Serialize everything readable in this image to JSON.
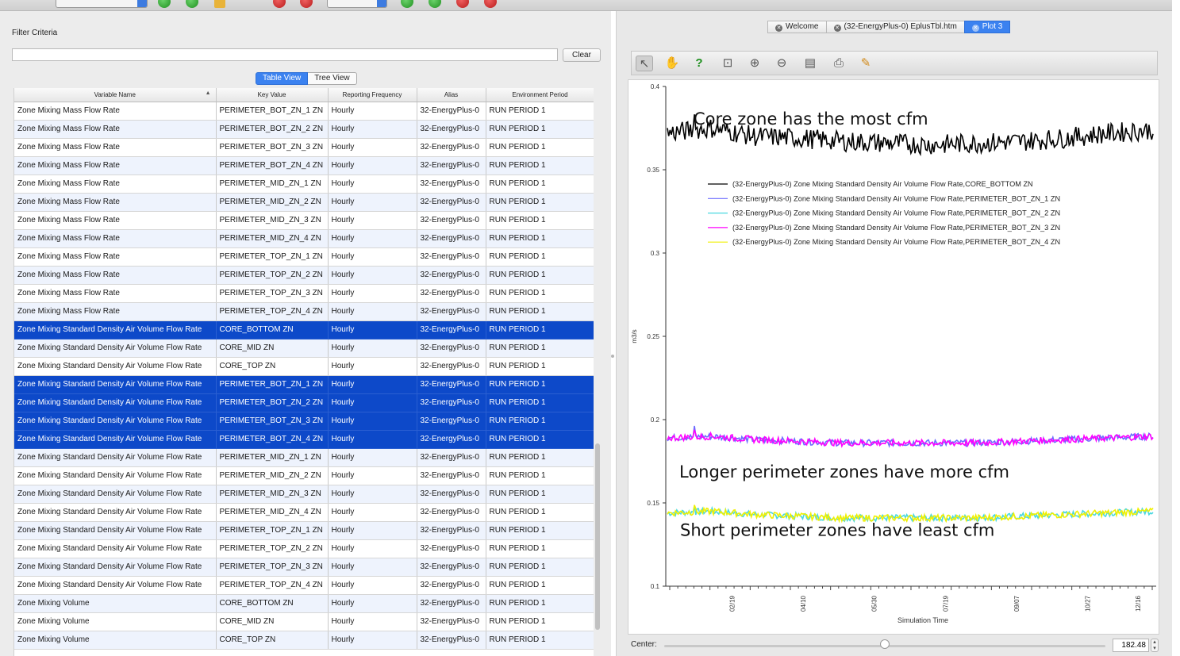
{
  "filter": {
    "label": "Filter Criteria",
    "value": "",
    "clear_label": "Clear"
  },
  "view_toggle": {
    "table": "Table View",
    "tree": "Tree View",
    "selected": "Table View"
  },
  "table": {
    "columns": [
      "Variable Name",
      "Key Value",
      "Reporting Frequency",
      "Alias",
      "Environment Period"
    ],
    "rows": [
      [
        "Zone Mixing Mass Flow Rate",
        "PERIMETER_BOT_ZN_1 ZN",
        "Hourly",
        "32-EnergyPlus-0",
        "RUN PERIOD 1"
      ],
      [
        "Zone Mixing Mass Flow Rate",
        "PERIMETER_BOT_ZN_2 ZN",
        "Hourly",
        "32-EnergyPlus-0",
        "RUN PERIOD 1"
      ],
      [
        "Zone Mixing Mass Flow Rate",
        "PERIMETER_BOT_ZN_3 ZN",
        "Hourly",
        "32-EnergyPlus-0",
        "RUN PERIOD 1"
      ],
      [
        "Zone Mixing Mass Flow Rate",
        "PERIMETER_BOT_ZN_4 ZN",
        "Hourly",
        "32-EnergyPlus-0",
        "RUN PERIOD 1"
      ],
      [
        "Zone Mixing Mass Flow Rate",
        "PERIMETER_MID_ZN_1 ZN",
        "Hourly",
        "32-EnergyPlus-0",
        "RUN PERIOD 1"
      ],
      [
        "Zone Mixing Mass Flow Rate",
        "PERIMETER_MID_ZN_2 ZN",
        "Hourly",
        "32-EnergyPlus-0",
        "RUN PERIOD 1"
      ],
      [
        "Zone Mixing Mass Flow Rate",
        "PERIMETER_MID_ZN_3 ZN",
        "Hourly",
        "32-EnergyPlus-0",
        "RUN PERIOD 1"
      ],
      [
        "Zone Mixing Mass Flow Rate",
        "PERIMETER_MID_ZN_4 ZN",
        "Hourly",
        "32-EnergyPlus-0",
        "RUN PERIOD 1"
      ],
      [
        "Zone Mixing Mass Flow Rate",
        "PERIMETER_TOP_ZN_1 ZN",
        "Hourly",
        "32-EnergyPlus-0",
        "RUN PERIOD 1"
      ],
      [
        "Zone Mixing Mass Flow Rate",
        "PERIMETER_TOP_ZN_2 ZN",
        "Hourly",
        "32-EnergyPlus-0",
        "RUN PERIOD 1"
      ],
      [
        "Zone Mixing Mass Flow Rate",
        "PERIMETER_TOP_ZN_3 ZN",
        "Hourly",
        "32-EnergyPlus-0",
        "RUN PERIOD 1"
      ],
      [
        "Zone Mixing Mass Flow Rate",
        "PERIMETER_TOP_ZN_4 ZN",
        "Hourly",
        "32-EnergyPlus-0",
        "RUN PERIOD 1"
      ],
      [
        "Zone Mixing Standard Density Air Volume Flow Rate",
        "CORE_BOTTOM ZN",
        "Hourly",
        "32-EnergyPlus-0",
        "RUN PERIOD 1"
      ],
      [
        "Zone Mixing Standard Density Air Volume Flow Rate",
        "CORE_MID ZN",
        "Hourly",
        "32-EnergyPlus-0",
        "RUN PERIOD 1"
      ],
      [
        "Zone Mixing Standard Density Air Volume Flow Rate",
        "CORE_TOP ZN",
        "Hourly",
        "32-EnergyPlus-0",
        "RUN PERIOD 1"
      ],
      [
        "Zone Mixing Standard Density Air Volume Flow Rate",
        "PERIMETER_BOT_ZN_1 ZN",
        "Hourly",
        "32-EnergyPlus-0",
        "RUN PERIOD 1"
      ],
      [
        "Zone Mixing Standard Density Air Volume Flow Rate",
        "PERIMETER_BOT_ZN_2 ZN",
        "Hourly",
        "32-EnergyPlus-0",
        "RUN PERIOD 1"
      ],
      [
        "Zone Mixing Standard Density Air Volume Flow Rate",
        "PERIMETER_BOT_ZN_3 ZN",
        "Hourly",
        "32-EnergyPlus-0",
        "RUN PERIOD 1"
      ],
      [
        "Zone Mixing Standard Density Air Volume Flow Rate",
        "PERIMETER_BOT_ZN_4 ZN",
        "Hourly",
        "32-EnergyPlus-0",
        "RUN PERIOD 1"
      ],
      [
        "Zone Mixing Standard Density Air Volume Flow Rate",
        "PERIMETER_MID_ZN_1 ZN",
        "Hourly",
        "32-EnergyPlus-0",
        "RUN PERIOD 1"
      ],
      [
        "Zone Mixing Standard Density Air Volume Flow Rate",
        "PERIMETER_MID_ZN_2 ZN",
        "Hourly",
        "32-EnergyPlus-0",
        "RUN PERIOD 1"
      ],
      [
        "Zone Mixing Standard Density Air Volume Flow Rate",
        "PERIMETER_MID_ZN_3 ZN",
        "Hourly",
        "32-EnergyPlus-0",
        "RUN PERIOD 1"
      ],
      [
        "Zone Mixing Standard Density Air Volume Flow Rate",
        "PERIMETER_MID_ZN_4 ZN",
        "Hourly",
        "32-EnergyPlus-0",
        "RUN PERIOD 1"
      ],
      [
        "Zone Mixing Standard Density Air Volume Flow Rate",
        "PERIMETER_TOP_ZN_1 ZN",
        "Hourly",
        "32-EnergyPlus-0",
        "RUN PERIOD 1"
      ],
      [
        "Zone Mixing Standard Density Air Volume Flow Rate",
        "PERIMETER_TOP_ZN_2 ZN",
        "Hourly",
        "32-EnergyPlus-0",
        "RUN PERIOD 1"
      ],
      [
        "Zone Mixing Standard Density Air Volume Flow Rate",
        "PERIMETER_TOP_ZN_3 ZN",
        "Hourly",
        "32-EnergyPlus-0",
        "RUN PERIOD 1"
      ],
      [
        "Zone Mixing Standard Density Air Volume Flow Rate",
        "PERIMETER_TOP_ZN_4 ZN",
        "Hourly",
        "32-EnergyPlus-0",
        "RUN PERIOD 1"
      ],
      [
        "Zone Mixing Volume",
        "CORE_BOTTOM ZN",
        "Hourly",
        "32-EnergyPlus-0",
        "RUN PERIOD 1"
      ],
      [
        "Zone Mixing Volume",
        "CORE_MID ZN",
        "Hourly",
        "32-EnergyPlus-0",
        "RUN PERIOD 1"
      ],
      [
        "Zone Mixing Volume",
        "CORE_TOP ZN",
        "Hourly",
        "32-EnergyPlus-0",
        "RUN PERIOD 1"
      ]
    ],
    "selected_rows": [
      12,
      15,
      16,
      17,
      18
    ]
  },
  "tabs": [
    {
      "label": "Welcome",
      "active": false
    },
    {
      "label": "(32-EnergyPlus-0) EplusTbl.htm",
      "active": false
    },
    {
      "label": "Plot 3",
      "active": true
    }
  ],
  "plot_toolbar": [
    "select-arrow-icon",
    "pan-hand-icon",
    "help-cursor-icon",
    "zoom-box-icon",
    "zoom-in-icon",
    "zoom-out-icon",
    "export-icon",
    "print-icon",
    "edit-pen-icon"
  ],
  "center_control": {
    "label": "Center:",
    "value": "182.48",
    "slider_fraction": 0.5
  },
  "colors": {
    "selection": "#0d49c9",
    "accent": "#3b82f0"
  },
  "chart_data": {
    "type": "line",
    "title": "",
    "xlabel": "Simulation Time",
    "ylabel": "m3/s",
    "ylim": [
      0.1,
      0.4
    ],
    "yticks": [
      "0.4",
      "0.35",
      "0.3",
      "0.25",
      "0.2",
      "0.15",
      "0.1"
    ],
    "xticks": [
      "02/19",
      "04/10",
      "05/30",
      "07/19",
      "09/07",
      "10/27",
      "12/16"
    ],
    "legend_position": "upper-center",
    "series": [
      {
        "name": "(32-EnergyPlus-0) Zone Mixing Standard Density Air Volume Flow Rate,CORE_BOTTOM ZN",
        "color": "#000000",
        "mean": 0.368,
        "amplitude": 0.006,
        "profile": [
          0.372,
          0.375,
          0.37,
          0.369,
          0.367,
          0.366,
          0.365,
          0.366,
          0.367,
          0.369,
          0.372,
          0.374
        ]
      },
      {
        "name": "(32-EnergyPlus-0) Zone Mixing Standard Density Air Volume Flow Rate,PERIMETER_BOT_ZN_1 ZN",
        "color": "#6c6cff",
        "mean": 0.188,
        "amplitude": 0.002,
        "profile": [
          0.189,
          0.19,
          0.188,
          0.187,
          0.186,
          0.186,
          0.186,
          0.186,
          0.187,
          0.188,
          0.189,
          0.19
        ]
      },
      {
        "name": "(32-EnergyPlus-0) Zone Mixing Standard Density Air Volume Flow Rate,PERIMETER_BOT_ZN_2 ZN",
        "color": "#49d8e0",
        "mean": 0.143,
        "amplitude": 0.002,
        "profile": [
          0.144,
          0.145,
          0.143,
          0.142,
          0.141,
          0.141,
          0.141,
          0.141,
          0.142,
          0.143,
          0.144,
          0.145
        ]
      },
      {
        "name": "(32-EnergyPlus-0) Zone Mixing Standard Density Air Volume Flow Rate,PERIMETER_BOT_ZN_3 ZN",
        "color": "#ff00ff",
        "mean": 0.188,
        "amplitude": 0.002,
        "profile": [
          0.189,
          0.19,
          0.188,
          0.187,
          0.186,
          0.186,
          0.186,
          0.186,
          0.187,
          0.188,
          0.189,
          0.19
        ]
      },
      {
        "name": "(32-EnergyPlus-0) Zone Mixing Standard Density Air Volume Flow Rate,PERIMETER_BOT_ZN_4 ZN",
        "color": "#f0f000",
        "mean": 0.143,
        "amplitude": 0.002,
        "profile": [
          0.144,
          0.145,
          0.143,
          0.142,
          0.141,
          0.141,
          0.141,
          0.141,
          0.142,
          0.143,
          0.144,
          0.145
        ]
      }
    ],
    "annotations": [
      {
        "text": "Core zone has the most cfm",
        "y": 0.38
      },
      {
        "text": "Longer perimeter zones have more cfm",
        "y": 0.168
      },
      {
        "text": "Short perimeter zones have least cfm",
        "y": 0.133
      }
    ]
  }
}
